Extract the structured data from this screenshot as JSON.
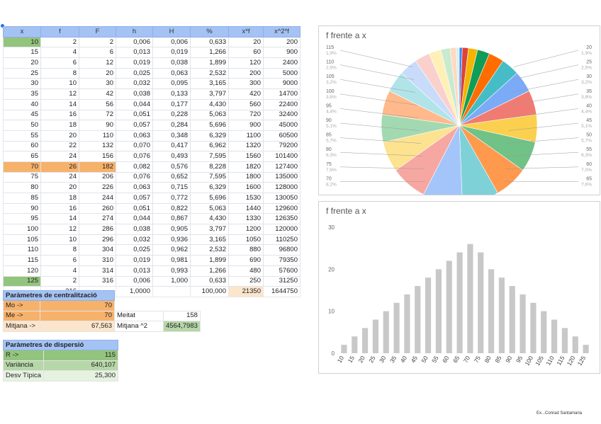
{
  "table": {
    "headers": [
      "x",
      "f",
      "F",
      "h",
      "H",
      "%",
      "x*f",
      "x^2*f"
    ],
    "rows": [
      [
        "10",
        "2",
        "2",
        "0,006",
        "0,006",
        "0,633",
        "20",
        "200"
      ],
      [
        "15",
        "4",
        "6",
        "0,013",
        "0,019",
        "1,266",
        "60",
        "900"
      ],
      [
        "20",
        "6",
        "12",
        "0,019",
        "0,038",
        "1,899",
        "120",
        "2400"
      ],
      [
        "25",
        "8",
        "20",
        "0,025",
        "0,063",
        "2,532",
        "200",
        "5000"
      ],
      [
        "30",
        "10",
        "30",
        "0,032",
        "0,095",
        "3,165",
        "300",
        "9000"
      ],
      [
        "35",
        "12",
        "42",
        "0,038",
        "0,133",
        "3,797",
        "420",
        "14700"
      ],
      [
        "40",
        "14",
        "56",
        "0,044",
        "0,177",
        "4,430",
        "560",
        "22400"
      ],
      [
        "45",
        "16",
        "72",
        "0,051",
        "0,228",
        "5,063",
        "720",
        "32400"
      ],
      [
        "50",
        "18",
        "90",
        "0,057",
        "0,284",
        "5,696",
        "900",
        "45000"
      ],
      [
        "55",
        "20",
        "110",
        "0,063",
        "0,348",
        "6,329",
        "1100",
        "60500"
      ],
      [
        "60",
        "22",
        "132",
        "0,070",
        "0,417",
        "6,962",
        "1320",
        "79200"
      ],
      [
        "65",
        "24",
        "156",
        "0,076",
        "0,493",
        "7,595",
        "1560",
        "101400"
      ],
      [
        "70",
        "26",
        "182",
        "0,082",
        "0,576",
        "8,228",
        "1820",
        "127400"
      ],
      [
        "75",
        "24",
        "206",
        "0,076",
        "0,652",
        "7,595",
        "1800",
        "135000"
      ],
      [
        "80",
        "20",
        "226",
        "0,063",
        "0,715",
        "6,329",
        "1600",
        "128000"
      ],
      [
        "85",
        "18",
        "244",
        "0,057",
        "0,772",
        "5,696",
        "1530",
        "130050"
      ],
      [
        "90",
        "16",
        "260",
        "0,051",
        "0,822",
        "5,063",
        "1440",
        "129600"
      ],
      [
        "95",
        "14",
        "274",
        "0,044",
        "0,867",
        "4,430",
        "1330",
        "126350"
      ],
      [
        "100",
        "12",
        "286",
        "0,038",
        "0,905",
        "3,797",
        "1200",
        "120000"
      ],
      [
        "105",
        "10",
        "296",
        "0,032",
        "0,936",
        "3,165",
        "1050",
        "110250"
      ],
      [
        "110",
        "8",
        "304",
        "0,025",
        "0,962",
        "2,532",
        "880",
        "96800"
      ],
      [
        "115",
        "6",
        "310",
        "0,019",
        "0,981",
        "1,899",
        "690",
        "79350"
      ],
      [
        "120",
        "4",
        "314",
        "0,013",
        "0,993",
        "1,266",
        "480",
        "57600"
      ],
      [
        "125",
        "2",
        "316",
        "0,006",
        "1,000",
        "0,633",
        "250",
        "31250"
      ]
    ],
    "totals": [
      "",
      "316",
      "",
      "1,0000",
      "",
      "100,000",
      "21350",
      "1644750"
    ]
  },
  "central": {
    "title": "Paràmetres de centralització",
    "mo_label": "Mo ->",
    "mo_value": "70",
    "me_label": "Me ->",
    "me_value": "70",
    "meitat_label": "Meitat",
    "meitat_value": "158",
    "mitjana_label": "Mitjana ->",
    "mitjana_value": "67,563",
    "mitjana2_label": "Mitjana ^2",
    "mitjana2_value": "4564,7983"
  },
  "dispersion": {
    "title": "Paràmetres de dispersió",
    "r_label": "R ->",
    "r_value": "115",
    "var_label": "Variància",
    "var_value": "640,107",
    "desv_label": "Desv Típica",
    "desv_value": "25,300"
  },
  "pie_chart": {
    "title": "f frente a x",
    "left_labels": [
      {
        "x": "115",
        "pct": "1,9%"
      },
      {
        "x": "110",
        "pct": "2,5%"
      },
      {
        "x": "105",
        "pct": "3,2%"
      },
      {
        "x": "100",
        "pct": "3,8%"
      },
      {
        "x": "95",
        "pct": "4,4%"
      },
      {
        "x": "90",
        "pct": "5,1%"
      },
      {
        "x": "85",
        "pct": "5,7%"
      },
      {
        "x": "80",
        "pct": "6,3%"
      },
      {
        "x": "75",
        "pct": "7,6%"
      },
      {
        "x": "70",
        "pct": "8,2%"
      }
    ],
    "right_labels": [
      {
        "x": "20",
        "pct": "1,9%"
      },
      {
        "x": "25",
        "pct": "2,5%"
      },
      {
        "x": "30",
        "pct": "3,2%"
      },
      {
        "x": "35",
        "pct": "3,8%"
      },
      {
        "x": "40",
        "pct": "4,4%"
      },
      {
        "x": "45",
        "pct": "5,1%"
      },
      {
        "x": "50",
        "pct": "5,7%"
      },
      {
        "x": "55",
        "pct": "6,3%"
      },
      {
        "x": "60",
        "pct": "7,0%"
      },
      {
        "x": "65",
        "pct": "7,6%"
      }
    ]
  },
  "chart_data": {
    "type": "bar",
    "title": "f frente a x",
    "categories": [
      "10",
      "15",
      "20",
      "25",
      "30",
      "35",
      "40",
      "45",
      "50",
      "55",
      "60",
      "65",
      "70",
      "75",
      "80",
      "85",
      "90",
      "95",
      "100",
      "105",
      "110",
      "115",
      "120",
      "125"
    ],
    "values": [
      2,
      4,
      6,
      8,
      10,
      12,
      14,
      16,
      18,
      20,
      22,
      24,
      26,
      24,
      20,
      18,
      16,
      14,
      12,
      10,
      8,
      6,
      4,
      2
    ],
    "ylim": [
      0,
      30
    ],
    "yticks": [
      "0",
      "10",
      "20",
      "30"
    ],
    "bar_color": "#c8c8c8",
    "grid": false
  },
  "footer": {
    "credits": "Ex...Conrad Santamaria"
  }
}
